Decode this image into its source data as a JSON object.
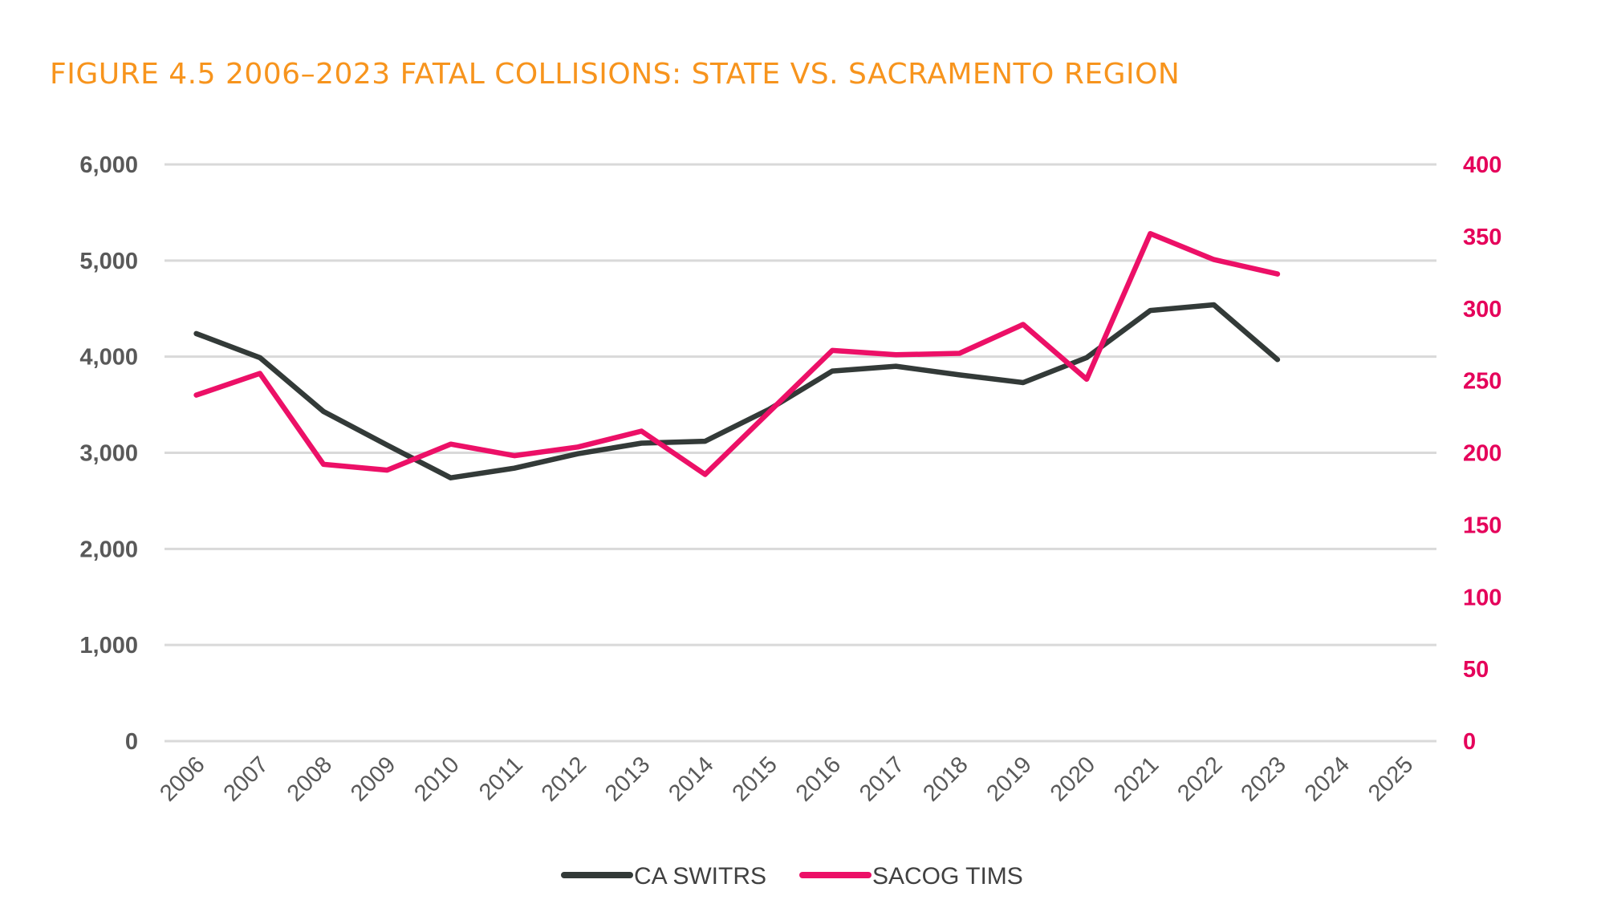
{
  "chart_data": {
    "type": "line",
    "title": "FIGURE 4.5 2006–2023 FATAL COLLISIONS: STATE VS. SACRAMENTO REGION",
    "categories": [
      "2006",
      "2007",
      "2008",
      "2009",
      "2010",
      "2011",
      "2012",
      "2013",
      "2014",
      "2015",
      "2016",
      "2017",
      "2018",
      "2019",
      "2020",
      "2021",
      "2022",
      "2023",
      "2024",
      "2025"
    ],
    "y_left": {
      "ticks": [
        "0",
        "1,000",
        "2,000",
        "3,000",
        "4,000",
        "5,000",
        "6,000"
      ],
      "ylim": [
        0,
        6000
      ]
    },
    "y_right": {
      "ticks": [
        "0",
        "50",
        "100",
        "150",
        "200",
        "250",
        "300",
        "350",
        "400"
      ],
      "ylim": [
        0,
        400
      ]
    },
    "grid": true,
    "legend_position": "bottom",
    "series": [
      {
        "name": "CA SWITRS",
        "axis": "left",
        "color": "#333a38",
        "values": [
          4240,
          3990,
          3430,
          3080,
          2740,
          2840,
          2990,
          3100,
          3120,
          3450,
          3850,
          3900,
          3810,
          3730,
          3990,
          4480,
          4540,
          3970,
          null,
          null
        ]
      },
      {
        "name": "SACOG TIMS",
        "axis": "right",
        "color": "#ec1067",
        "values": [
          240,
          255,
          192,
          188,
          206,
          198,
          204,
          215,
          185,
          228,
          271,
          268,
          269,
          289,
          251,
          352,
          334,
          324,
          null,
          null
        ]
      }
    ],
    "colors": {
      "title": "#f7941d",
      "grid": "#d9d9d9",
      "left_axis_text": "#595959",
      "right_axis_text": "#e5005a"
    }
  }
}
